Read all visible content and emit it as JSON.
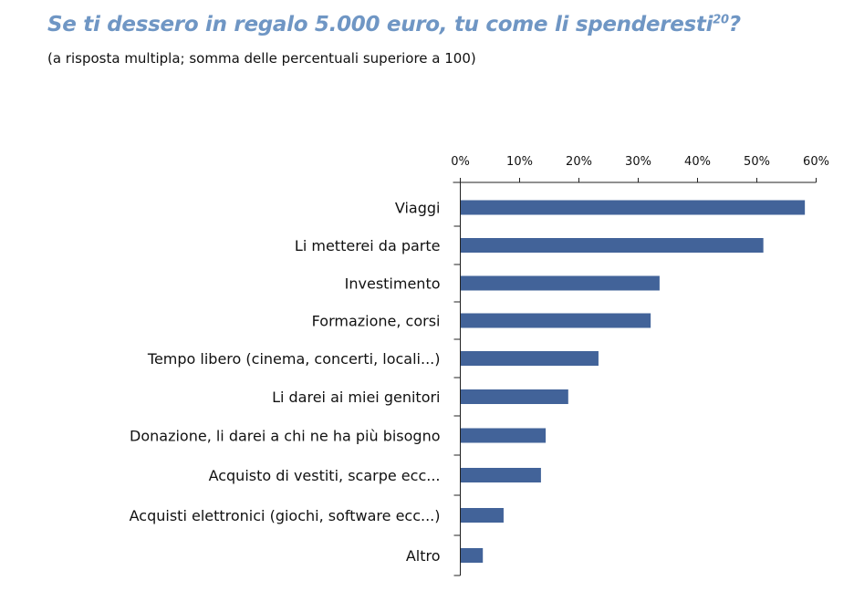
{
  "title": "Se ti dessero in regalo 5.000 euro, tu come li spenderesti",
  "title_footnote": "20",
  "title_suffix": "?",
  "subtitle": "(a risposta multipla; somma delle percentuali superiore a 100)",
  "colors": {
    "title": "#6f96c4",
    "bar": "#426399",
    "axis": "#222222"
  },
  "chart_data": {
    "type": "bar",
    "orientation": "horizontal",
    "title": "Se ti dessero in regalo 5.000 euro, tu come li spenderesti?",
    "subtitle": "(a risposta multipla; somma delle percentuali superiore a 100)",
    "xlabel": "",
    "ylabel": "",
    "xlim": [
      0,
      60
    ],
    "x_axis_position": "top",
    "xticks": [
      0,
      10,
      20,
      30,
      40,
      50,
      60
    ],
    "xtick_labels": [
      "0%",
      "10%",
      "20%",
      "30%",
      "40%",
      "50%",
      "60%"
    ],
    "grid": false,
    "legend": "none",
    "categories": [
      "Viaggi",
      "Li metterei da parte",
      "Investimento",
      "Formazione, corsi",
      "Tempo libero (cinema, concerti, locali...)",
      "Li darei ai miei genitori",
      "Donazione, li darei a chi ne ha più bisogno",
      "Acquisto di vestiti, scarpe ecc...",
      "Acquisti elettronici (giochi, software ecc...)",
      "Altro"
    ],
    "values": [
      58.1,
      51.1,
      33.6,
      32.1,
      23.3,
      18.2,
      14.4,
      13.6,
      7.3,
      3.8
    ],
    "unit": "%"
  }
}
